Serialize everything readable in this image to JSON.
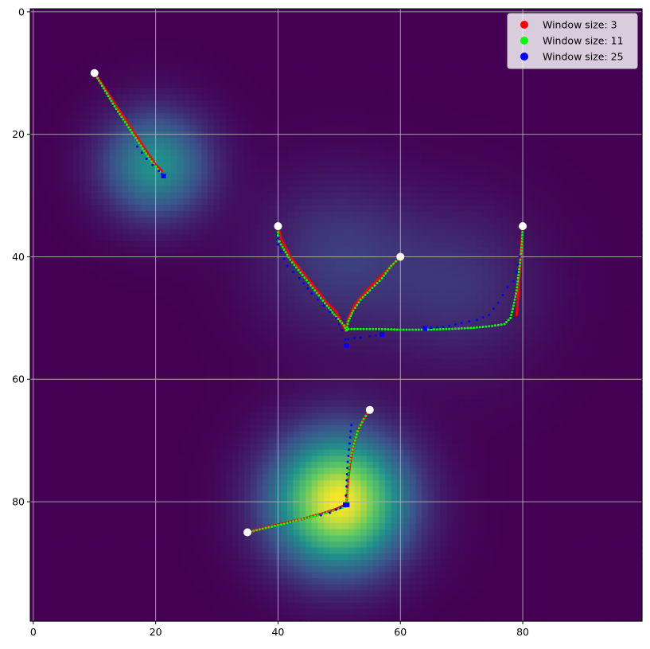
{
  "chart_data": {
    "type": "heatmap",
    "grid_size": [
      100,
      100
    ],
    "colormap": "viridis",
    "colormap_stops": [
      "#440154",
      "#3b528b",
      "#21918c",
      "#5ec962",
      "#fde725"
    ],
    "heat_peaks": [
      {
        "x": 20,
        "y": 25,
        "amplitude": 0.5,
        "sigma": 6
      },
      {
        "x": 50,
        "y": 40,
        "amplitude": 0.18,
        "sigma": 9
      },
      {
        "x": 70,
        "y": 45,
        "amplitude": 0.15,
        "sigma": 9
      },
      {
        "x": 50,
        "y": 80,
        "amplitude": 1.0,
        "sigma": 7.5
      }
    ],
    "x_ticks": [
      "0",
      "20",
      "40",
      "60",
      "80"
    ],
    "y_ticks": [
      "0",
      "20",
      "40",
      "60",
      "80"
    ],
    "xlim": [
      -0.5,
      99.5
    ],
    "ylim": [
      99.5,
      -0.5
    ],
    "grid": true,
    "legend_position": "top-right",
    "start_points": {
      "color": "#ffffff",
      "points": [
        [
          10,
          10
        ],
        [
          40,
          35
        ],
        [
          60,
          40
        ],
        [
          80,
          35
        ],
        [
          55,
          65
        ],
        [
          35,
          85
        ]
      ]
    },
    "series": [
      {
        "name": "Window size: 3",
        "color": "#ff0000",
        "paths": [
          [
            [
              10,
              10
            ],
            [
              12,
              13
            ],
            [
              14,
              16
            ],
            [
              16,
              19
            ],
            [
              18,
              22
            ],
            [
              20,
              25
            ],
            [
              21,
              26
            ]
          ],
          [
            [
              40,
              35
            ],
            [
              40.5,
              37
            ],
            [
              42,
              40
            ],
            [
              44,
              42.5
            ],
            [
              46,
              45
            ],
            [
              48,
              47.5
            ],
            [
              49.5,
              49
            ],
            [
              50.5,
              51
            ],
            [
              51,
              52
            ]
          ],
          [
            [
              60,
              40
            ],
            [
              58,
              42
            ],
            [
              56,
              44
            ],
            [
              54,
              46
            ],
            [
              52.5,
              48
            ],
            [
              51.5,
              50
            ],
            [
              51,
              52
            ]
          ],
          [
            [
              80,
              35
            ],
            [
              79.8,
              38
            ],
            [
              79.6,
              41
            ],
            [
              79.4,
              44
            ],
            [
              79.2,
              47
            ],
            [
              79,
              49.5
            ]
          ],
          [
            [
              55,
              65
            ],
            [
              54,
              66.5
            ],
            [
              53,
              68.5
            ],
            [
              52.3,
              71
            ],
            [
              51.8,
              73.5
            ],
            [
              51.5,
              76
            ],
            [
              51.3,
              78.5
            ],
            [
              51.2,
              80.5
            ]
          ],
          [
            [
              35,
              85
            ],
            [
              38,
              84.2
            ],
            [
              41,
              83.5
            ],
            [
              44,
              82.8
            ],
            [
              47,
              82
            ],
            [
              49.5,
              81.2
            ],
            [
              51,
              80.5
            ]
          ]
        ]
      },
      {
        "name": "Window size: 11",
        "color": "#00ff00",
        "paths": [
          [
            [
              10,
              10
            ],
            [
              11.5,
              12.5
            ],
            [
              13,
              15
            ],
            [
              15,
              18
            ],
            [
              17,
              21
            ],
            [
              19,
              24
            ],
            [
              21,
              26.5
            ]
          ],
          [
            [
              40,
              35
            ],
            [
              40,
              37
            ],
            [
              40.5,
              38
            ],
            [
              42,
              40.5
            ],
            [
              44,
              43
            ],
            [
              46,
              45.5
            ],
            [
              48,
              48
            ],
            [
              49.5,
              49.8
            ],
            [
              50.8,
              51.2
            ],
            [
              51.2,
              52
            ]
          ],
          [
            [
              60,
              40
            ],
            [
              58.5,
              41.5
            ],
            [
              57,
              43.5
            ],
            [
              55,
              45.5
            ],
            [
              53.5,
              47
            ],
            [
              52.3,
              48.8
            ],
            [
              51.5,
              50.5
            ],
            [
              51.2,
              52
            ]
          ],
          [
            [
              80,
              35
            ],
            [
              79.9,
              37.5
            ],
            [
              79.6,
              40.5
            ],
            [
              79.3,
              43
            ],
            [
              79,
              45.5
            ],
            [
              78.5,
              48
            ],
            [
              78,
              50
            ],
            [
              77,
              51
            ],
            [
              75,
              51.3
            ],
            [
              72,
              51.6
            ],
            [
              68,
              51.8
            ],
            [
              64,
              51.9
            ],
            [
              60,
              51.9
            ],
            [
              56,
              51.8
            ],
            [
              53,
              51.8
            ],
            [
              51.5,
              51.8
            ]
          ],
          [
            [
              55,
              65
            ],
            [
              54,
              66.5
            ],
            [
              53,
              68.5
            ],
            [
              52.3,
              71
            ],
            [
              51.7,
              73.5
            ],
            [
              51.4,
              76
            ],
            [
              51.3,
              78
            ],
            [
              51.2,
              80.5
            ]
          ],
          [
            [
              35,
              85
            ],
            [
              38,
              84.3
            ],
            [
              41,
              83.6
            ],
            [
              44,
              82.8
            ],
            [
              47,
              82.1
            ],
            [
              49,
              81.5
            ],
            [
              50.5,
              81
            ],
            [
              51,
              80.8
            ]
          ]
        ]
      },
      {
        "name": "Window size: 25",
        "color": "#0000ff",
        "paths": [
          [
            [
              17,
              22
            ],
            [
              18.5,
              24
            ],
            [
              19.5,
              25
            ],
            [
              20.5,
              26
            ],
            [
              21,
              26.5
            ],
            [
              21.3,
              26.8
            ]
          ],
          [
            [
              40,
              37
            ],
            [
              40,
              38
            ],
            [
              41.5,
              41.5
            ],
            [
              43.5,
              43.5
            ],
            [
              45.5,
              46
            ],
            [
              47.5,
              48
            ],
            [
              49.5,
              50
            ],
            [
              50.5,
              52
            ],
            [
              51,
              53.5
            ],
            [
              51.2,
              54.5
            ]
          ],
          [
            [
              51.5,
              53.5
            ],
            [
              52.5,
              53.3
            ],
            [
              53.5,
              53.2
            ],
            [
              55,
              53
            ],
            [
              57,
              52.7
            ]
          ],
          [
            [
              79.5,
              40
            ],
            [
              79,
              42.5
            ],
            [
              78.5,
              44
            ],
            [
              77.5,
              45
            ],
            [
              76,
              47.5
            ],
            [
              74.5,
              49.5
            ],
            [
              72.5,
              50.3
            ],
            [
              70,
              50.8
            ],
            [
              68,
              51.3
            ],
            [
              66,
              51.5
            ],
            [
              64,
              51.7
            ]
          ],
          [
            [
              52,
              67.5
            ],
            [
              51.8,
              69.5
            ],
            [
              51.6,
              71.5
            ],
            [
              51.4,
              73.5
            ],
            [
              51.3,
              75.5
            ],
            [
              51.2,
              77.5
            ],
            [
              51.1,
              79
            ],
            [
              51,
              80.5
            ]
          ],
          [
            [
              47,
              82.2
            ],
            [
              48.5,
              81.8
            ],
            [
              49.5,
              81.3
            ],
            [
              50.2,
              81
            ],
            [
              50.7,
              80.7
            ],
            [
              51.3,
              80.5
            ]
          ]
        ]
      }
    ]
  }
}
